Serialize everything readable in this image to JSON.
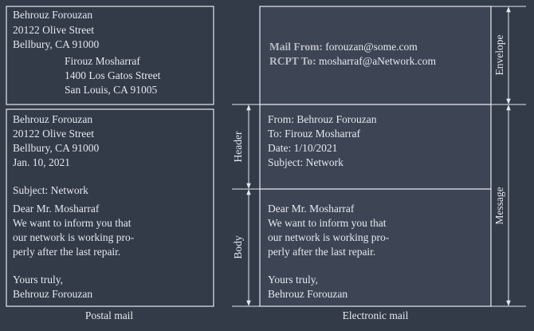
{
  "postal_mail": {
    "envelope": {
      "sender": [
        "Behrouz Forouzan",
        "20122 Olive Street",
        "Bellbury, CA 91000"
      ],
      "recipient": [
        "Firouz Mosharraf",
        "1400 Los Gatos Street",
        "San Louis, CA 91005"
      ]
    },
    "letter": {
      "heading": [
        "Behrouz Forouzan",
        "20122 Olive Street",
        "Bellbury, CA 91000",
        "Jan. 10, 2021"
      ],
      "subject": "Subject: Network",
      "body": [
        "Dear Mr. Mosharraf",
        "We want to inform you that",
        "our network is working pro-",
        "perly after the last repair."
      ],
      "closing": [
        "Yours truly,",
        "Behrouz Forouzan"
      ]
    },
    "caption": "Postal mail"
  },
  "electronic_mail": {
    "envelope": {
      "mail_from_label": "Mail From:",
      "mail_from": "forouzan@some.com",
      "rcpt_to_label": "RCPT To:",
      "rcpt_to": "mosharraf@aNetwork.com"
    },
    "header": [
      "From: Behrouz Forouzan",
      "To: Firouz Mosharraf",
      "Date: 1/10/2021",
      "Subject: Network"
    ],
    "body": [
      "Dear Mr. Mosharraf",
      "We want to inform you that",
      "our network is working pro-",
      "perly after the last repair."
    ],
    "closing": [
      "Yours truly,",
      "Behrouz Forouzan"
    ],
    "caption": "Electronic mail"
  },
  "labels": {
    "envelope": "Envelope",
    "message": "Message",
    "header": "Header",
    "body": "Body"
  }
}
